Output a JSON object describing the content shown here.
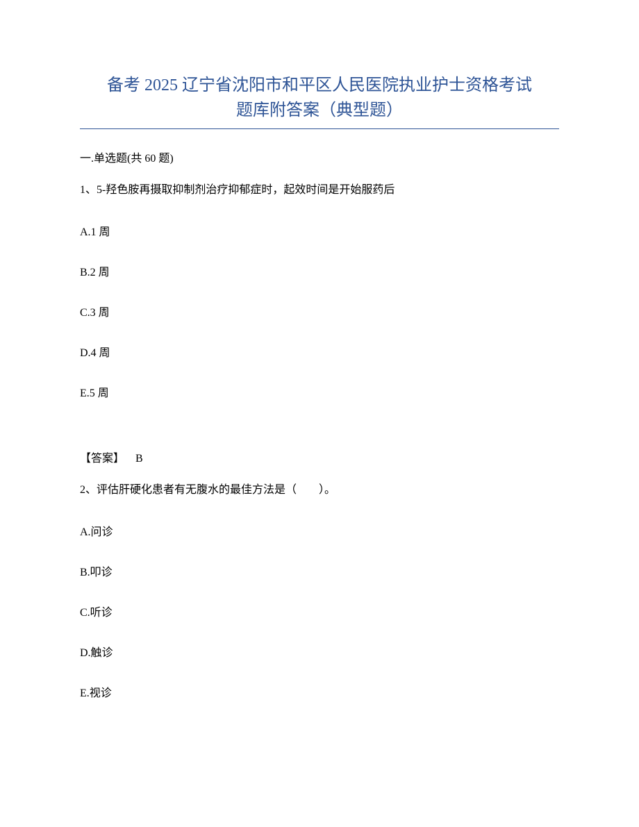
{
  "title": {
    "line1": "备考 2025 辽宁省沈阳市和平区人民医院执业护士资格考试",
    "line2": "题库附答案（典型题）",
    "color": "#2e5496",
    "fontsize": 24
  },
  "section": {
    "label": "一.单选题(共 60 题)"
  },
  "questions": [
    {
      "number": "1、",
      "text": "5-羟色胺再摄取抑制剂治疗抑郁症时，起效时间是开始服药后",
      "options": [
        "A.1 周",
        "B.2 周",
        "C.3 周",
        "D.4 周",
        "E.5 周"
      ],
      "answer_label": "【答案】",
      "answer_value": "B"
    },
    {
      "number": "2、",
      "text": "评估肝硬化患者有无腹水的最佳方法是（　　）。",
      "options": [
        "A.问诊",
        "B.叩诊",
        "C.听诊",
        "D.触诊",
        "E.视诊"
      ]
    }
  ],
  "colors": {
    "title_color": "#2e5496",
    "text_color": "#000000",
    "background": "#ffffff",
    "divider": "#2e5496"
  },
  "typography": {
    "title_fontsize": 24,
    "body_fontsize": 16,
    "font_family": "SimSun"
  }
}
